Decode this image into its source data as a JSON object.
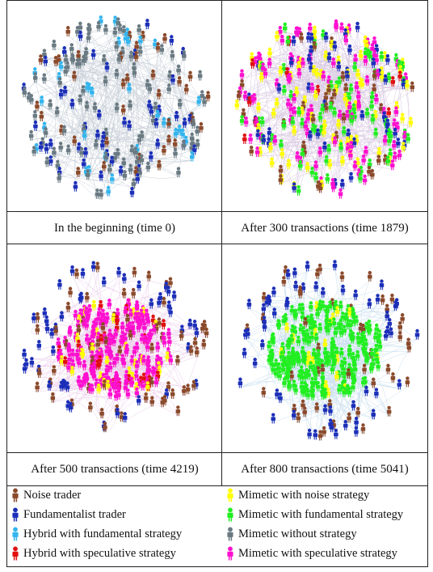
{
  "panels": [
    {
      "caption": "In the beginning (time 0)",
      "layout": "scattered",
      "mix": {
        "gray": 0.5,
        "blue": 0.22,
        "cyan": 0.16,
        "brown": 0.12
      }
    },
    {
      "caption": "After 300 transactions (time 1879)",
      "layout": "dense",
      "mix": {
        "magenta": 0.3,
        "yellow": 0.22,
        "green": 0.2,
        "blue": 0.14,
        "brown": 0.1,
        "red": 0.04
      }
    },
    {
      "caption": "After 500 transactions (time 4219)",
      "layout": "core",
      "core_mix": {
        "magenta": 0.75,
        "yellow": 0.1,
        "red": 0.08,
        "brown": 0.07
      },
      "ring_mix": {
        "blue": 0.55,
        "brown": 0.45
      }
    },
    {
      "caption": "After 800 transactions (time 5041)",
      "layout": "core",
      "core_mix": {
        "green": 0.9,
        "yellow": 0.05,
        "brown": 0.05
      },
      "ring_mix": {
        "blue": 0.6,
        "brown": 0.4
      }
    }
  ],
  "legend": [
    {
      "label": "Noise trader",
      "color": "#8b4a2b"
    },
    {
      "label": "Mimetic with noise strategy",
      "color": "#ffff00"
    },
    {
      "label": "Fundamentalist trader",
      "color": "#1c2fb8"
    },
    {
      "label": "Mimetic with fundamental strategy",
      "color": "#22ee22"
    },
    {
      "label": "Hybrid with fundamental strategy",
      "color": "#33b5ee"
    },
    {
      "label": "Mimetic without strategy",
      "color": "#6a7a82"
    },
    {
      "label": "Hybrid with speculative strategy",
      "color": "#e01010"
    },
    {
      "label": "Mimetic with speculative strategy",
      "color": "#ff10d0"
    }
  ],
  "colors": {
    "brown": "#8b4a2b",
    "yellow": "#ffff00",
    "blue": "#1c2fb8",
    "green": "#22ee22",
    "cyan": "#33b5ee",
    "gray": "#6a7a82",
    "red": "#e01010",
    "magenta": "#ff10d0"
  }
}
